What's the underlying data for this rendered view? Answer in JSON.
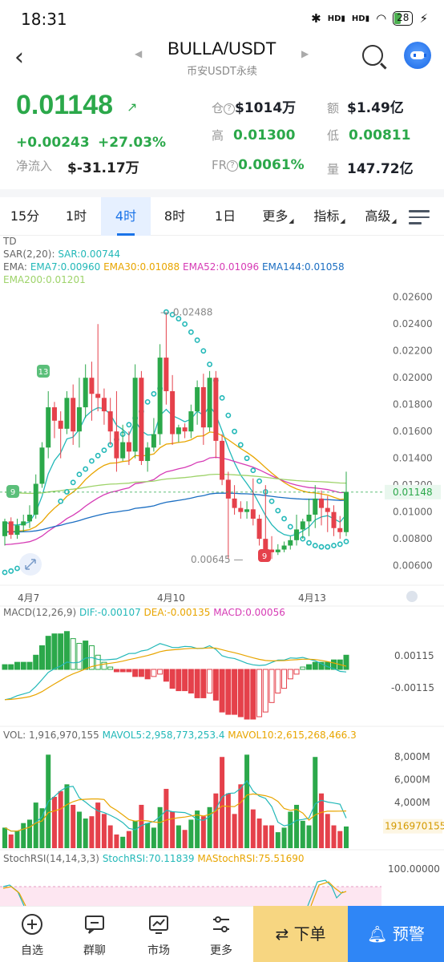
{
  "status_bar": {
    "time": "18:31",
    "signal1": "HD",
    "signal2": "HD",
    "battery": "28"
  },
  "header": {
    "title": "BULLA/USDT",
    "subtitle": "币安USDT永续"
  },
  "ticker": {
    "price": "0.01148",
    "change_abs": "+0.00243",
    "change_pct": "+27.03%",
    "netflow_label": "净流入",
    "netflow_value": "$-31.17万",
    "oi_label": "仓",
    "oi_value": "$1014万",
    "amount_label": "额",
    "amount_value": "$1.49亿",
    "high_label": "高",
    "high_value": "0.01300",
    "low_label": "低",
    "low_value": "0.00811",
    "fr_label": "FR",
    "fr_value": "0.0061%",
    "vol_label": "量",
    "vol_value": "147.72亿"
  },
  "tabs": [
    "15分",
    "1时",
    "4时",
    "8时",
    "1日",
    "更多",
    "指标",
    "高级"
  ],
  "active_tab": "4时",
  "indicators": {
    "td": "TD",
    "sar_label": "SAR(2,20):",
    "sar_value": "SAR:0.00744",
    "ema_label": "EMA:",
    "ema7": "EMA7:0.00960",
    "ema30": "EMA30:0.01088",
    "ema52": "EMA52:0.01096",
    "ema144": "EMA144:0.01058",
    "ema200": "EMA200:0.01201",
    "price_high_mark": "0.02488",
    "price_low_mark": "0.00645",
    "td_marker_13": "13",
    "td_marker_9a": "9",
    "td_marker_9b": "9",
    "current_price_tag": "0.01148",
    "macd_label": "MACD(12,26,9)",
    "macd_dif": "DIF:-0.00107",
    "macd_dea": "DEA:-0.00135",
    "macd_val": "MACD:0.00056",
    "macd_axis_top": "0.00115",
    "macd_axis_bottom": "-0.00115",
    "vol_label": "VOL: 1,916,970,155",
    "mavol5": "MAVOL5:2,958,773,253.4",
    "mavol10": "MAVOL10:2,615,268,466.3",
    "vol_tag": "1916970155",
    "stoch_label": "StochRSI(14,14,3,3)",
    "stoch_rsi": "StochRSI:70.11839",
    "stoch_ma": "MAStochRSI:75.51690",
    "stoch_axis": "100.00000"
  },
  "chart_data": {
    "type": "candlestick",
    "y_axis_ticks": [
      "0.02600",
      "0.02400",
      "0.02200",
      "0.02000",
      "0.01800",
      "0.01600",
      "0.01400",
      "0.01200",
      "0.01000",
      "0.00800",
      "0.00600"
    ],
    "x_axis_labels": [
      "4月7",
      "4月10",
      "4月13"
    ],
    "volume_axis_ticks": [
      "8,000M",
      "6,000M",
      "4,000M"
    ],
    "price_range": [
      0.0055,
      0.027
    ],
    "candles": [
      [
        0.0082,
        0.0093,
        0.0075,
        0.0095
      ],
      [
        0.0093,
        0.0083,
        0.008,
        0.0096
      ],
      [
        0.0083,
        0.009,
        0.008,
        0.0095
      ],
      [
        0.009,
        0.0093,
        0.0085,
        0.0098
      ],
      [
        0.0093,
        0.0098,
        0.0088,
        0.0105
      ],
      [
        0.0098,
        0.0121,
        0.0095,
        0.0128
      ],
      [
        0.0121,
        0.0148,
        0.0118,
        0.0152
      ],
      [
        0.0148,
        0.0178,
        0.014,
        0.019
      ],
      [
        0.0178,
        0.0168,
        0.0155,
        0.0182
      ],
      [
        0.0168,
        0.0162,
        0.014,
        0.0175
      ],
      [
        0.0162,
        0.0185,
        0.0158,
        0.019
      ],
      [
        0.0185,
        0.016,
        0.015,
        0.0195
      ],
      [
        0.016,
        0.0178,
        0.0148,
        0.02
      ],
      [
        0.0178,
        0.02,
        0.017,
        0.021
      ],
      [
        0.02,
        0.0188,
        0.0168,
        0.0212
      ],
      [
        0.0188,
        0.0185,
        0.0175,
        0.024
      ],
      [
        0.0185,
        0.0175,
        0.0165,
        0.0192
      ],
      [
        0.0175,
        0.016,
        0.015,
        0.0185
      ],
      [
        0.016,
        0.014,
        0.013,
        0.019
      ],
      [
        0.014,
        0.0152,
        0.0138,
        0.0165
      ],
      [
        0.0152,
        0.0145,
        0.0135,
        0.016
      ],
      [
        0.0145,
        0.02,
        0.014,
        0.021
      ],
      [
        0.02,
        0.0138,
        0.0135,
        0.0205
      ],
      [
        0.0138,
        0.0148,
        0.013,
        0.0152
      ],
      [
        0.0148,
        0.0158,
        0.0145,
        0.017
      ],
      [
        0.0158,
        0.0215,
        0.015,
        0.0225
      ],
      [
        0.0215,
        0.019,
        0.018,
        0.0248
      ],
      [
        0.019,
        0.0158,
        0.015,
        0.0202
      ],
      [
        0.0158,
        0.0163,
        0.0152,
        0.0165
      ],
      [
        0.0163,
        0.016,
        0.0155,
        0.0166
      ],
      [
        0.016,
        0.0175,
        0.0155,
        0.018
      ],
      [
        0.0175,
        0.0193,
        0.0165,
        0.0198
      ],
      [
        0.0193,
        0.0163,
        0.015,
        0.0203
      ],
      [
        0.0163,
        0.02,
        0.016,
        0.0205
      ],
      [
        0.02,
        0.0153,
        0.014,
        0.0205
      ],
      [
        0.0153,
        0.0124,
        0.012,
        0.0158
      ],
      [
        0.0124,
        0.011,
        0.0065,
        0.013
      ],
      [
        0.011,
        0.0103,
        0.0098,
        0.012
      ],
      [
        0.0103,
        0.01,
        0.0095,
        0.0108
      ],
      [
        0.01,
        0.0102,
        0.0095,
        0.0108
      ],
      [
        0.0102,
        0.0095,
        0.009,
        0.0125
      ],
      [
        0.0095,
        0.008,
        0.0075,
        0.0098
      ],
      [
        0.008,
        0.0072,
        0.0069,
        0.012
      ],
      [
        0.0072,
        0.007,
        0.0065,
        0.0082
      ],
      [
        0.007,
        0.0072,
        0.0068,
        0.0076
      ],
      [
        0.0072,
        0.0075,
        0.007,
        0.0078
      ],
      [
        0.0075,
        0.0079,
        0.0072,
        0.0082
      ],
      [
        0.0079,
        0.0087,
        0.0075,
        0.0098
      ],
      [
        0.0087,
        0.0093,
        0.008,
        0.0095
      ],
      [
        0.0093,
        0.0098,
        0.0082,
        0.011
      ],
      [
        0.0098,
        0.011,
        0.0088,
        0.012
      ],
      [
        0.011,
        0.0103,
        0.009,
        0.0116
      ],
      [
        0.0103,
        0.01,
        0.0085,
        0.0112
      ],
      [
        0.01,
        0.0088,
        0.0082,
        0.0105
      ],
      [
        0.0088,
        0.0085,
        0.008,
        0.0097
      ],
      [
        0.0085,
        0.0115,
        0.0082,
        0.013
      ]
    ],
    "macd_hist": [
      0.0002,
      0.0002,
      0.0003,
      0.0003,
      0.0003,
      0.0006,
      0.001,
      0.0014,
      0.0015,
      0.0015,
      0.0016,
      0.0013,
      0.0011,
      0.0012,
      0.001,
      0.0006,
      0.0003,
      0.0001,
      -0.0001,
      -0.0001,
      -0.0001,
      -0.0003,
      -0.0003,
      -0.0004,
      -0.0003,
      -0.0002,
      -0.0005,
      -0.0008,
      -0.0009,
      -0.0009,
      -0.001,
      -0.0012,
      -0.0012,
      -0.001,
      -0.0013,
      -0.0018,
      -0.0019,
      -0.0019,
      -0.002,
      -0.0021,
      -0.0021,
      -0.002,
      -0.0018,
      -0.0014,
      -0.001,
      -0.0008,
      -0.0004,
      -0.0002,
      0.0001,
      0.0002,
      0.0003,
      0.0003,
      0.0003,
      0.0004,
      0.0004,
      0.0006
    ],
    "volume": [
      1.8,
      1.2,
      1.5,
      2.2,
      2.5,
      4.0,
      3.5,
      8.2,
      4.5,
      5.0,
      5.6,
      3.8,
      3.2,
      2.6,
      2.8,
      4.0,
      3.0,
      2.0,
      1.2,
      1.0,
      1.5,
      2.4,
      3.8,
      2.2,
      1.8,
      3.6,
      5.2,
      3.2,
      2.0,
      1.6,
      2.5,
      3.3,
      2.8,
      3.6,
      4.8,
      8.0,
      4.8,
      3.0,
      5.6,
      8.2,
      3.4,
      2.6,
      2.0,
      2.0,
      1.4,
      1.8,
      3.2,
      3.8,
      2.4,
      2.0,
      8.0,
      4.8,
      3.0,
      2.0,
      1.5,
      1.9
    ]
  },
  "bottom_nav": {
    "items": [
      "自选",
      "群聊",
      "市场",
      "更多"
    ],
    "order_button": "下单",
    "alert_button": "预警"
  }
}
